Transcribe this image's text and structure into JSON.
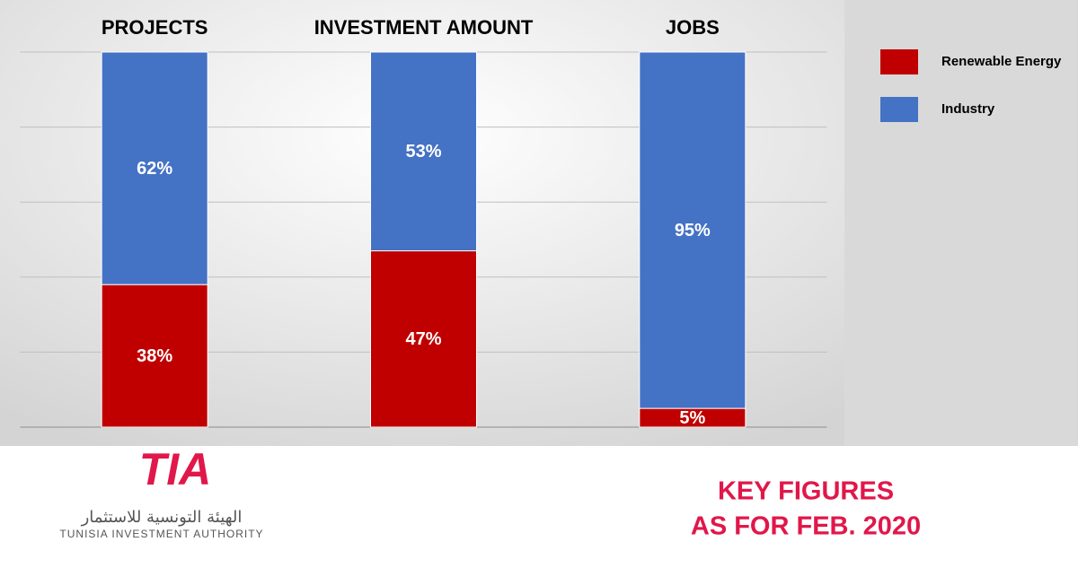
{
  "chart_data": {
    "type": "stacked_bar",
    "categories": [
      "PROJECTS",
      "INVESTMENT AMOUNT",
      "JOBS"
    ],
    "series": [
      {
        "name": "Renewable Energy",
        "color": "#c00000",
        "values": [
          38,
          47,
          5
        ],
        "value_labels": [
          "38%",
          "47%",
          "5%"
        ]
      },
      {
        "name": "Industry",
        "color": "#4472c4",
        "values": [
          62,
          53,
          95
        ],
        "value_labels": [
          "62%",
          "53%",
          "95%"
        ]
      }
    ],
    "ylim": [
      0,
      100
    ],
    "yticks": [
      0,
      20,
      40,
      60,
      80,
      100
    ],
    "grid": true,
    "legend": "right"
  },
  "footer": {
    "logo": "TIA",
    "org_arabic": "الهيئة التونسية للاستثمار",
    "org_english": "TUNISIA INVESTMENT AUTHORITY",
    "caption": [
      "KEY FIGURES",
      "AS FOR FEB. 2020"
    ]
  }
}
